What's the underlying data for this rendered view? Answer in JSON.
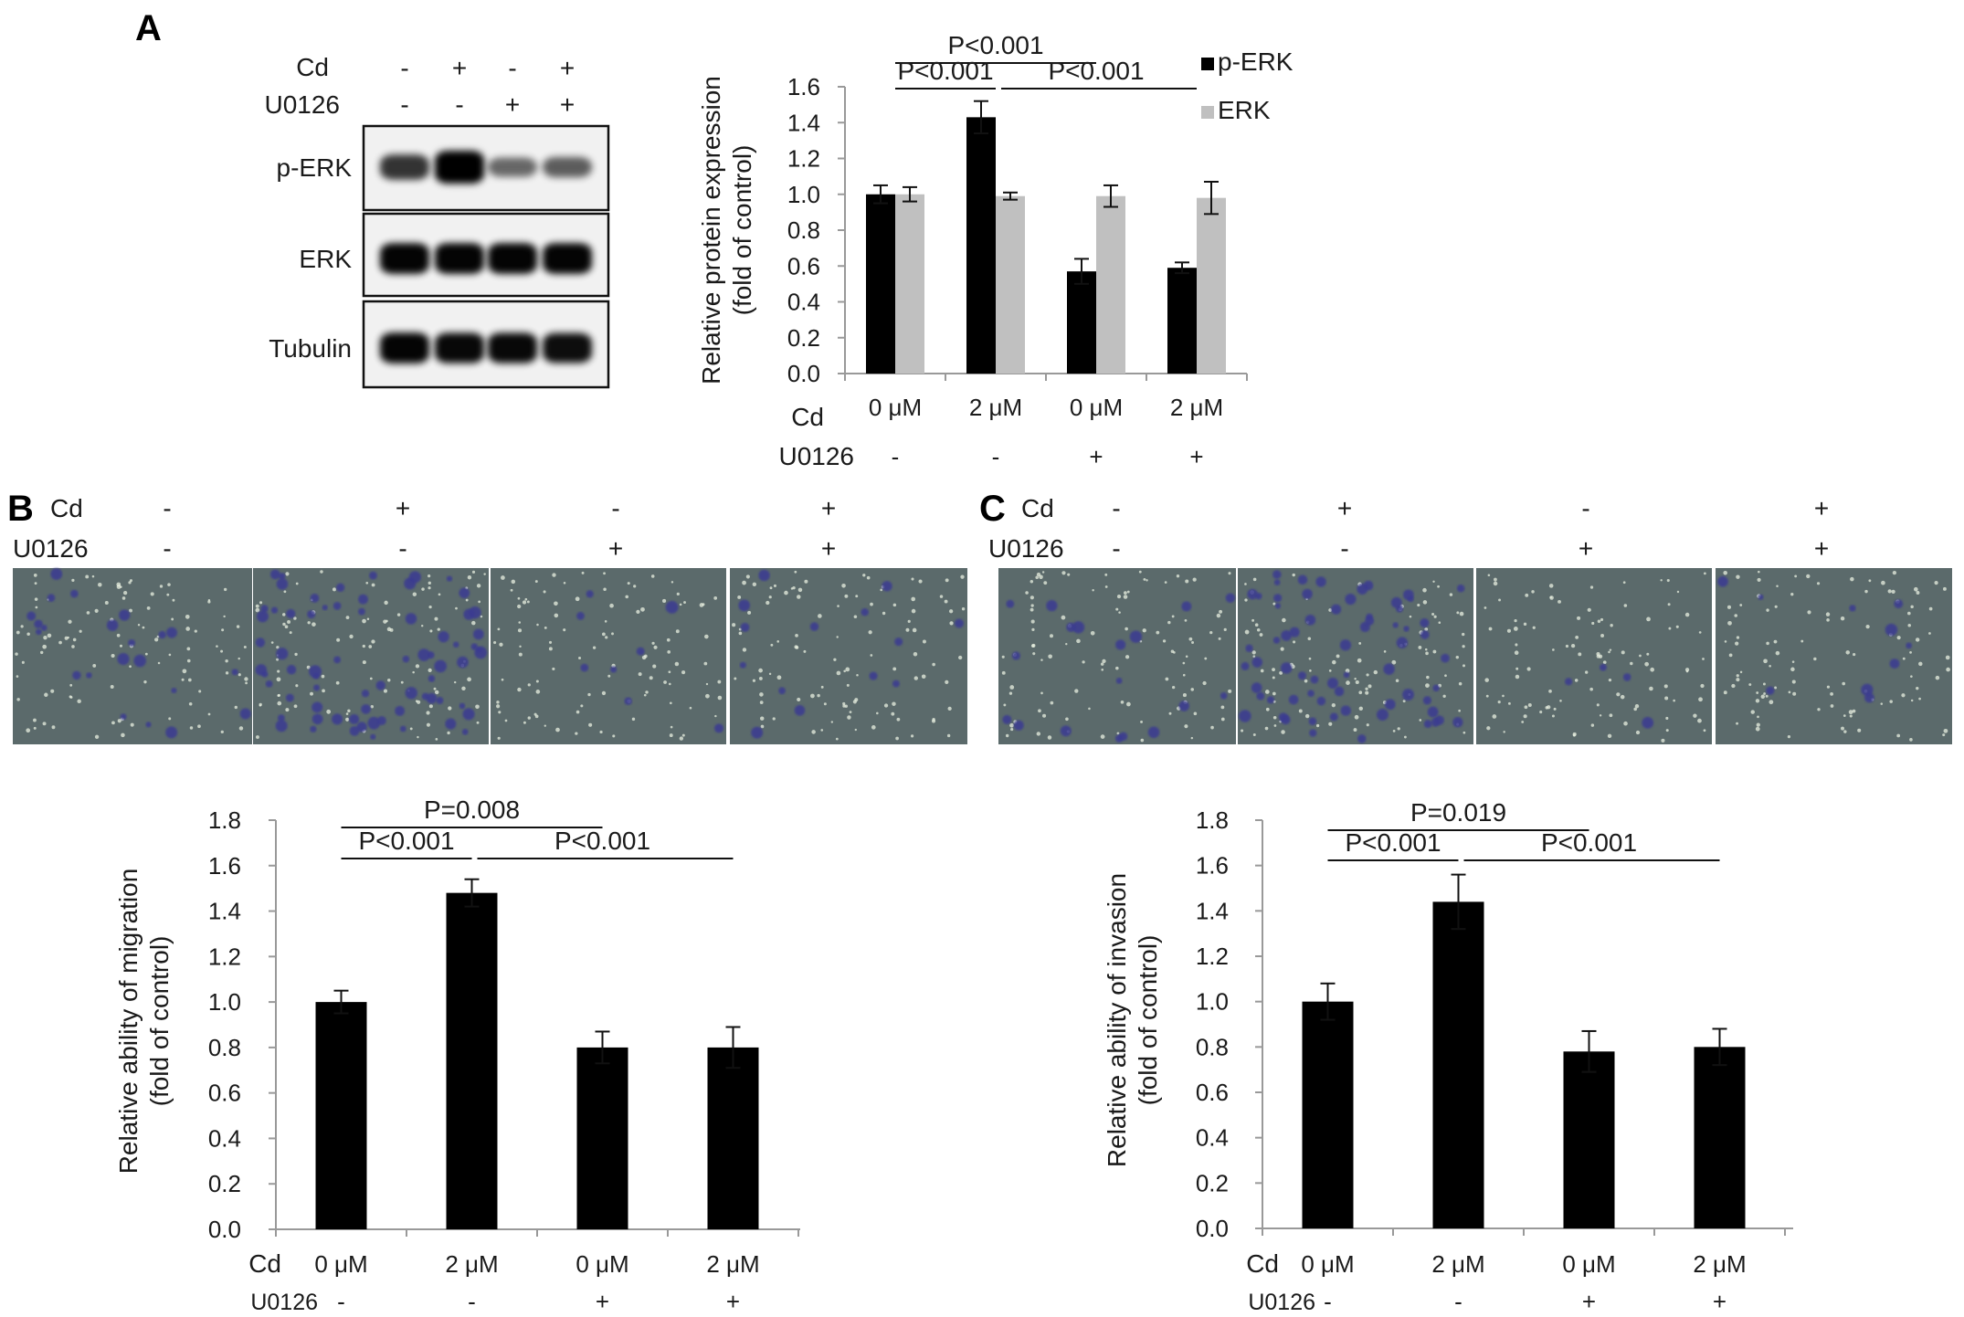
{
  "panel_labels": {
    "A": "A",
    "B": "B",
    "C": "C"
  },
  "blot": {
    "row_labels": [
      "Cd",
      "U0126"
    ],
    "treatments": {
      "Cd": [
        "-",
        "+",
        "-",
        "+"
      ],
      "U0126": [
        "-",
        "-",
        "+",
        "+"
      ]
    },
    "bands": [
      "p-ERK",
      "ERK",
      "Tubulin"
    ],
    "band_intensity": {
      "p-ERK": [
        0.62,
        1.0,
        0.32,
        0.38
      ],
      "ERK": [
        0.9,
        0.9,
        0.9,
        0.9
      ],
      "Tubulin": [
        0.9,
        0.88,
        0.88,
        0.85
      ]
    }
  },
  "micrographs": {
    "row_labels": [
      "Cd",
      "U0126"
    ],
    "treatments": {
      "Cd": [
        "-",
        "+",
        "-",
        "+"
      ],
      "U0126": [
        "-",
        "-",
        "+",
        "+"
      ]
    }
  },
  "colors": {
    "black_bar": "#000000",
    "gray_bar": "#c0c0c0",
    "micrograph_bg": "#5b6a6b",
    "stain": "#3a3a92"
  },
  "row_labels": {
    "cd": "Cd",
    "u0126": "U0126"
  },
  "chart_data": [
    {
      "id": "A",
      "type": "bar",
      "categories": [
        "0 μM",
        "2 μM",
        "0 μM",
        "2 μM"
      ],
      "u0126": [
        "-",
        "-",
        "+",
        "+"
      ],
      "series": [
        {
          "name": "p-ERK",
          "color": "#000000",
          "values": [
            1.0,
            1.43,
            0.57,
            0.59
          ],
          "errors": [
            0.05,
            0.09,
            0.07,
            0.03
          ]
        },
        {
          "name": "ERK",
          "color": "#c0c0c0",
          "values": [
            1.0,
            0.99,
            0.99,
            0.98
          ],
          "errors": [
            0.04,
            0.02,
            0.06,
            0.09
          ]
        }
      ],
      "ylabel": [
        "Relative protein expression",
        "(fold of control)"
      ],
      "ylim": [
        0,
        1.6
      ],
      "yticks": [
        "0.0",
        "0.2",
        "0.4",
        "0.6",
        "0.8",
        "1.0",
        "1.2",
        "1.4",
        "1.6"
      ],
      "legend": "top-right",
      "grid": false,
      "significance": [
        {
          "text": "P<0.001",
          "from": 0,
          "to": 2,
          "level": 2
        },
        {
          "text": "P<0.001",
          "from": 0,
          "to": 1,
          "level": 1
        },
        {
          "text": "P<0.001",
          "from": 1,
          "to": 3,
          "level": 1
        }
      ]
    },
    {
      "id": "B",
      "type": "bar",
      "categories": [
        "0 μM",
        "2 μM",
        "0 μM",
        "2 μM"
      ],
      "u0126": [
        "-",
        "-",
        "+",
        "+"
      ],
      "series": [
        {
          "color": "#000000",
          "values": [
            1.0,
            1.48,
            0.8,
            0.8
          ],
          "errors": [
            0.05,
            0.06,
            0.07,
            0.09
          ]
        }
      ],
      "ylabel": [
        "Relative ability of migration",
        "(fold of control)"
      ],
      "ylim": [
        0,
        1.8
      ],
      "yticks": [
        "0.0",
        "0.2",
        "0.4",
        "0.6",
        "0.8",
        "1.0",
        "1.2",
        "1.4",
        "1.6",
        "1.8"
      ],
      "grid": false,
      "significance": [
        {
          "text": "P=0.008",
          "from": 0,
          "to": 2,
          "level": 2
        },
        {
          "text": "P<0.001",
          "from": 0,
          "to": 1,
          "level": 1
        },
        {
          "text": "P<0.001",
          "from": 1,
          "to": 3,
          "level": 1
        }
      ]
    },
    {
      "id": "C",
      "type": "bar",
      "categories": [
        "0 μM",
        "2 μM",
        "0 μM",
        "2 μM"
      ],
      "u0126": [
        "-",
        "-",
        "+",
        "+"
      ],
      "series": [
        {
          "color": "#000000",
          "values": [
            1.0,
            1.44,
            0.78,
            0.8
          ],
          "errors": [
            0.08,
            0.12,
            0.09,
            0.08
          ]
        }
      ],
      "ylabel": [
        "Relative ability of invasion",
        "(fold of control)"
      ],
      "ylim": [
        0,
        1.8
      ],
      "yticks": [
        "0.0",
        "0.2",
        "0.4",
        "0.6",
        "0.8",
        "1.0",
        "1.2",
        "1.4",
        "1.6",
        "1.8"
      ],
      "grid": false,
      "significance": [
        {
          "text": "P=0.019",
          "from": 0,
          "to": 2,
          "level": 2
        },
        {
          "text": "P<0.001",
          "from": 0,
          "to": 1,
          "level": 1
        },
        {
          "text": "P<0.001",
          "from": 1,
          "to": 3,
          "level": 1
        }
      ]
    }
  ]
}
